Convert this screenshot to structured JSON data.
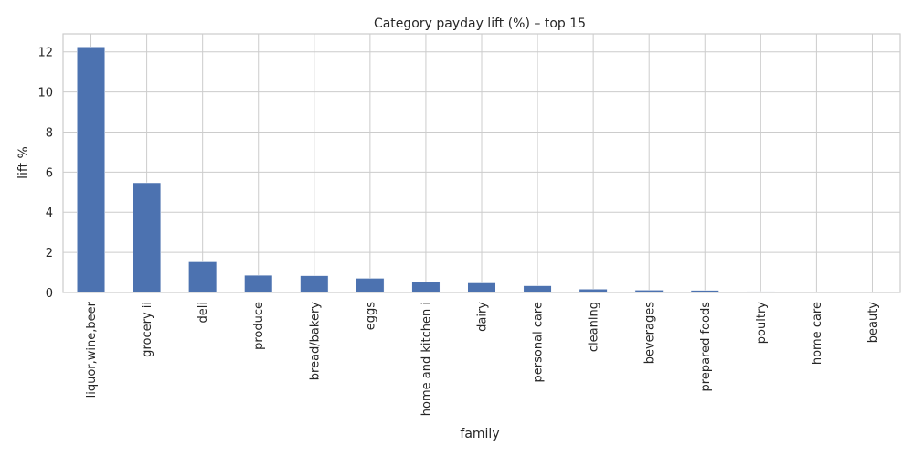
{
  "chart_data": {
    "type": "bar",
    "title": "Category payday lift (%) – top 15",
    "xlabel": "family",
    "ylabel": "lift %",
    "categories": [
      "liquor,wine,beer",
      "grocery ii",
      "deli",
      "produce",
      "bread/bakery",
      "eggs",
      "home and kitchen i",
      "dairy",
      "personal care",
      "cleaning",
      "beverages",
      "prepared foods",
      "poultry",
      "home care",
      "beauty"
    ],
    "values": [
      12.25,
      5.47,
      1.53,
      0.86,
      0.84,
      0.71,
      0.53,
      0.48,
      0.34,
      0.17,
      0.12,
      0.11,
      0.05,
      0.03,
      0.02
    ],
    "ylim": [
      0,
      12.9
    ],
    "yticks": [
      0,
      2,
      4,
      6,
      8,
      10,
      12
    ],
    "grid": true,
    "bar_color": "#4c72b0",
    "grid_color": "#cccccc"
  }
}
